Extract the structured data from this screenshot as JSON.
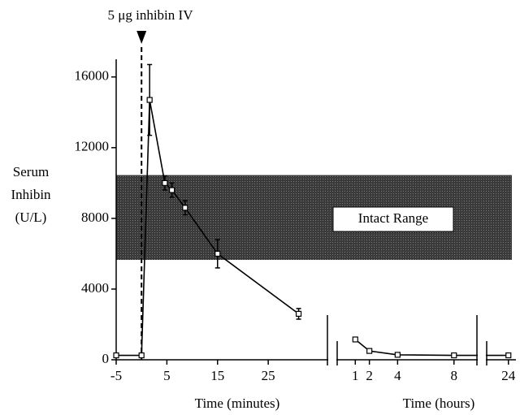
{
  "chart_data": {
    "type": "line",
    "annotation": {
      "text": "5 μg inhibin IV",
      "x": 0
    },
    "ylabel": [
      "Serum",
      "Inhibin",
      "(U/L)"
    ],
    "ylim": [
      0,
      17000
    ],
    "yticks": [
      0,
      4000,
      8000,
      12000,
      16000
    ],
    "x_axes": [
      {
        "label": "Time (minutes)",
        "xlim": [
          -5,
          37
        ],
        "xticks": [
          -5,
          5,
          15,
          25
        ]
      },
      {
        "label": "Time (hours)",
        "xlim": [
          -0.4,
          9.8
        ],
        "xticks": [
          1,
          2,
          4,
          8
        ]
      },
      {
        "xlim": [
          22.5,
          24.5
        ],
        "xticks": [
          24
        ]
      }
    ],
    "band": {
      "label": "Intact Range",
      "range": [
        5650,
        10450
      ],
      "color": "#3a3a3a"
    },
    "series": [
      {
        "x_axes": [
          0
        ],
        "color": "#000000",
        "x": [
          -5,
          0,
          1.6,
          4.6,
          6,
          8.6,
          15,
          31
        ],
        "values": [
          250,
          250,
          14700,
          10000,
          9600,
          8600,
          6000,
          2600
        ],
        "errors": [
          null,
          null,
          2000,
          400,
          400,
          400,
          800,
          300
        ]
      },
      {
        "x_axes": [
          1,
          2
        ],
        "color": "#000000",
        "x": [
          1,
          2,
          4,
          8,
          24
        ],
        "values": [
          1150,
          500,
          280,
          250,
          250
        ],
        "errors": [
          null,
          null,
          null,
          null,
          null
        ]
      }
    ]
  }
}
